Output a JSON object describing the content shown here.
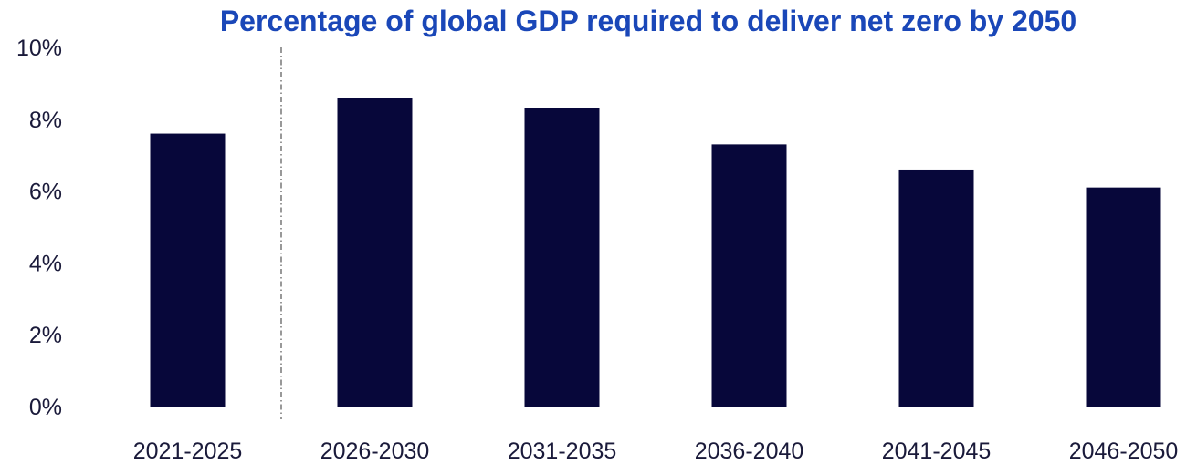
{
  "chart_data": {
    "type": "bar",
    "title": "Percentage of  global GDP required to deliver net zero by 2050",
    "categories": [
      "2021-2025",
      "2026-2030",
      "2031-2035",
      "2036-2040",
      "2041-2045",
      "2046-2050"
    ],
    "values": [
      7.6,
      8.6,
      8.3,
      7.3,
      6.6,
      6.1
    ],
    "ylim": [
      0,
      10
    ],
    "y_ticks": [
      0,
      2,
      4,
      6,
      8,
      10
    ],
    "y_tick_labels": [
      "0%",
      "2%",
      "4%",
      "6%",
      "8%",
      "10%"
    ],
    "xlabel": "",
    "ylabel": "",
    "grid": false,
    "divider_after_category": "2021-2025",
    "colors": {
      "bar": "#07073a",
      "title": "#1a47b8",
      "text": "#1a1a3a",
      "divider": "#555555"
    }
  }
}
